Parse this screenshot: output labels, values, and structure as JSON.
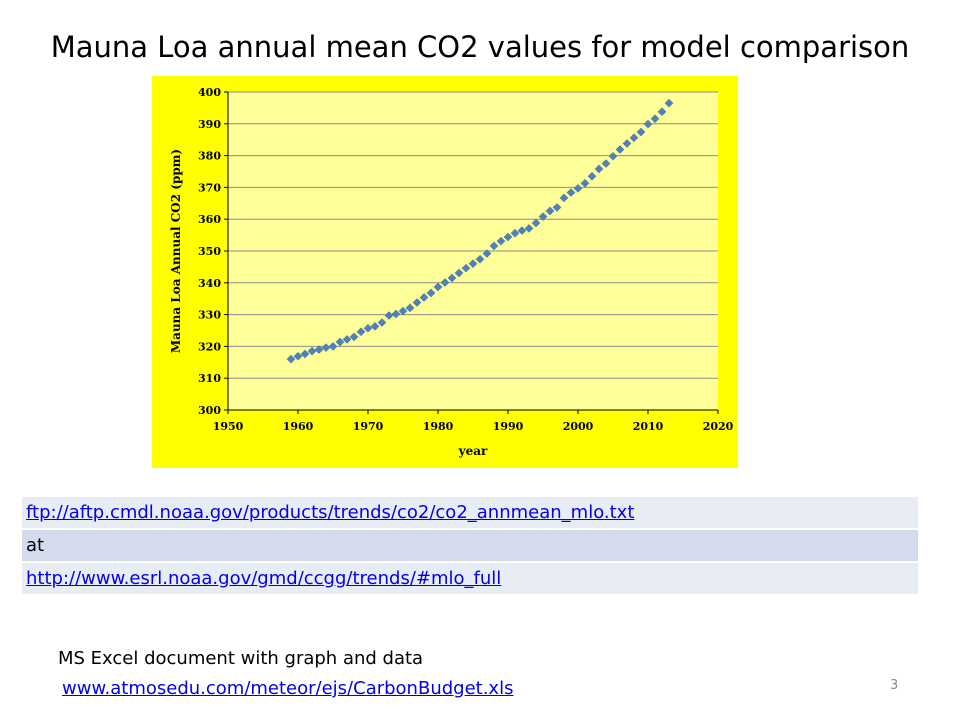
{
  "slide": {
    "title": "Mauna Loa annual mean CO2 values for model comparison",
    "page_number": "3"
  },
  "links": [
    {
      "text": "ftp://aftp.cmdl.noaa.gov/products/trends/co2/co2_annmean_mlo.txt",
      "is_link": true
    },
    {
      "text": "at",
      "is_link": false
    },
    {
      "text": "http://www.esrl.noaa.gov/gmd/ccgg/trends/#mlo_full",
      "is_link": true
    }
  ],
  "note": {
    "text": "MS Excel document with graph and data",
    "link": "www.atmosedu.com/meteor/ejs/CarbonBudget.xls"
  },
  "colors": {
    "chart_background": "#ffff00",
    "plot_area": "#ffff99",
    "marker": "#4f81bd",
    "link": "#0000ee"
  },
  "chart_data": {
    "type": "scatter",
    "marker": "diamond",
    "title": "",
    "xlabel": "year",
    "ylabel": "Mauna Loa Annual CO2 (ppm)",
    "xlim": [
      1950,
      2020
    ],
    "ylim": [
      300,
      400
    ],
    "xticks": [
      1950,
      1960,
      1970,
      1980,
      1990,
      2000,
      2010,
      2020
    ],
    "yticks": [
      300,
      310,
      320,
      330,
      340,
      350,
      360,
      370,
      380,
      390,
      400
    ],
    "grid": "horizontal",
    "x": [
      1959,
      1960,
      1961,
      1962,
      1963,
      1964,
      1965,
      1966,
      1967,
      1968,
      1969,
      1970,
      1971,
      1972,
      1973,
      1974,
      1975,
      1976,
      1977,
      1978,
      1979,
      1980,
      1981,
      1982,
      1983,
      1984,
      1985,
      1986,
      1987,
      1988,
      1989,
      1990,
      1991,
      1992,
      1993,
      1994,
      1995,
      1996,
      1997,
      1998,
      1999,
      2000,
      2001,
      2002,
      2003,
      2004,
      2005,
      2006,
      2007,
      2008,
      2009,
      2010,
      2011,
      2012,
      2013
    ],
    "y": [
      316.0,
      316.9,
      317.6,
      318.5,
      319.0,
      319.6,
      320.0,
      321.4,
      322.2,
      323.0,
      324.6,
      325.7,
      326.3,
      327.5,
      329.7,
      330.2,
      331.1,
      332.1,
      333.8,
      335.4,
      336.8,
      338.7,
      340.1,
      341.5,
      343.1,
      344.6,
      346.0,
      347.4,
      349.2,
      351.6,
      353.1,
      354.4,
      355.6,
      356.4,
      357.1,
      358.8,
      360.8,
      362.6,
      363.7,
      366.7,
      368.4,
      369.7,
      371.3,
      373.5,
      375.8,
      377.5,
      379.8,
      381.9,
      383.8,
      385.6,
      387.4,
      389.9,
      391.6,
      393.8,
      396.5
    ]
  }
}
